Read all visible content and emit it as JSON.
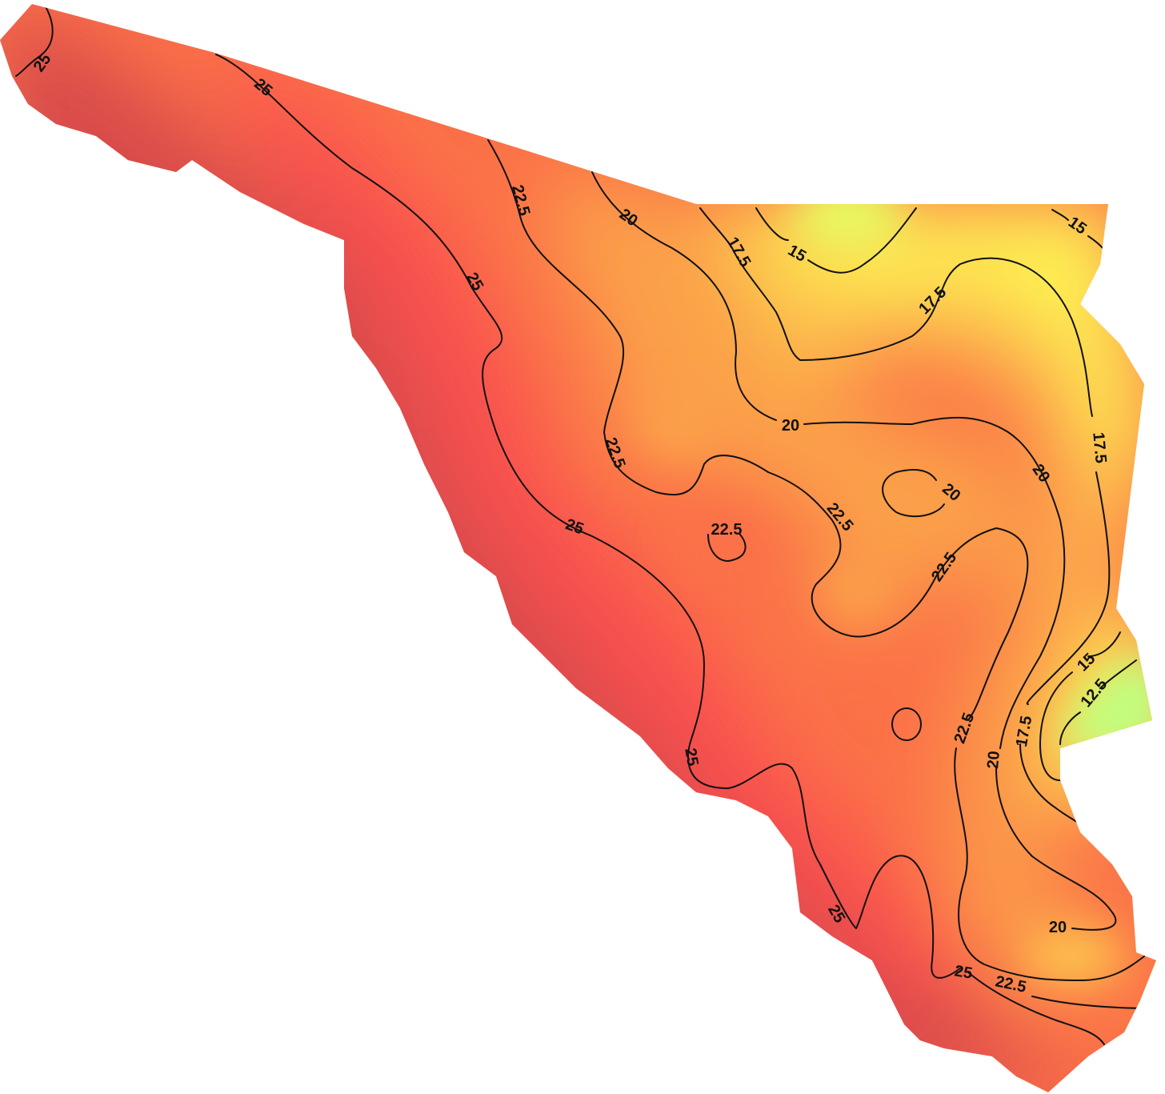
{
  "map": {
    "palette": {
      "very_high": "#d84c4c",
      "high": "#f95050",
      "mid_high": "#fb7148",
      "mid": "#fba04a",
      "mid_low": "#fdc54e",
      "low": "#fdf453",
      "very_low": "#bfff80"
    },
    "contour_levels": [
      "25",
      "22.5",
      "20",
      "17.5",
      "15",
      "12.5"
    ],
    "labels": {
      "l25_a": "25",
      "l25_b": "25",
      "l25_c": "25",
      "l25_d": "25",
      "l25_e": "25",
      "l25_f": "25",
      "l25_g": "25",
      "l225_a": "22.5",
      "l225_b": "22.5",
      "l225_c": "22.5",
      "l225_d": "22.5",
      "l225_e": "22.5",
      "l225_f": "22.5",
      "l225_g": "22.5",
      "l20_a": "20",
      "l20_b": "20",
      "l20_c": "20",
      "l20_d": "20",
      "l20_e": "20",
      "l20_f": "20",
      "l175_a": "17.5",
      "l175_b": "17.5",
      "l175_c": "17.5",
      "l175_d": "17.5",
      "l15_a": "15",
      "l15_b": "15",
      "l15_c": "15",
      "l125_a": "12.5"
    }
  }
}
